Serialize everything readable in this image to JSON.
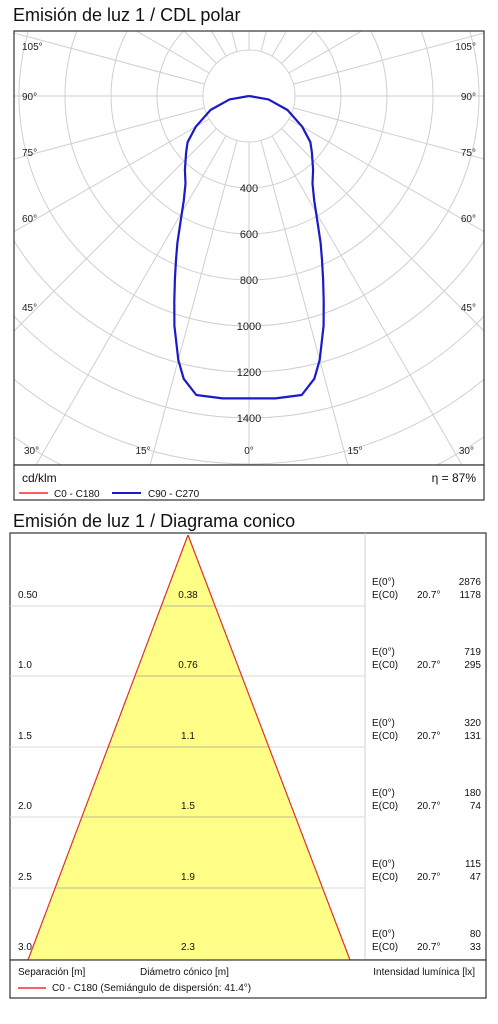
{
  "polar_title": "Emisión de luz 1 / CDL polar",
  "cone_title": "Emisión de luz 1 / Diagrama conico",
  "polar_footer": {
    "unit": "cd/klm",
    "efficiency": "η = 87%",
    "legend": [
      {
        "label": "C0 - C180",
        "color": "#ff2a2a"
      },
      {
        "label": "C90 - C270",
        "color": "#1a1ac8"
      }
    ]
  },
  "cone_footer": {
    "col1": "Separación [m]",
    "col2": "Diámetro cónico [m]",
    "col3": "Intensidad lumínica [lx]",
    "legend": "C0 - C180 (Semiángulo de dispersión: 41.4°)",
    "legend_color": "#ff2a2a"
  },
  "colors": {
    "grid": "#cfcfcf",
    "frame": "#333333",
    "cone_fill": "#ffff88",
    "cone_edge": "#e03030"
  },
  "chart_data": [
    {
      "type": "polar",
      "title": "Emisión de luz 1 / CDL polar",
      "radial_unit": "cd/klm",
      "radial_ticks": [
        400,
        600,
        800,
        1000,
        1200,
        1400
      ],
      "angle_labels_left": [
        "105°",
        "90°",
        "75°",
        "60°",
        "45°",
        "30°",
        "15°"
      ],
      "angle_labels_right": [
        "105°",
        "90°",
        "75°",
        "60°",
        "45°",
        "30°",
        "15°"
      ],
      "angle_label_center": "0°",
      "efficiency": "η = 87%",
      "series": [
        {
          "name": "C90 - C270",
          "color": "#1a1ac8",
          "points": [
            {
              "angle": 0,
              "value": 1315
            },
            {
              "angle": 5,
              "value": 1320
            },
            {
              "angle": 10,
              "value": 1320
            },
            {
              "angle": 13,
              "value": 1262
            },
            {
              "angle": 15,
              "value": 1188
            },
            {
              "angle": 18,
              "value": 1050
            },
            {
              "angle": 20,
              "value": 950
            },
            {
              "angle": 22,
              "value": 860
            },
            {
              "angle": 24,
              "value": 780
            },
            {
              "angle": 26,
              "value": 710
            },
            {
              "angle": 29,
              "value": 610
            },
            {
              "angle": 32,
              "value": 535
            },
            {
              "angle": 36,
              "value": 470
            },
            {
              "angle": 41,
              "value": 425
            },
            {
              "angle": 48,
              "value": 368
            },
            {
              "angle": 53,
              "value": 334
            },
            {
              "angle": 60,
              "value": 267
            },
            {
              "angle": 70,
              "value": 178
            },
            {
              "angle": 80,
              "value": 86
            },
            {
              "angle": 90,
              "value": 0
            }
          ]
        },
        {
          "name": "C0 - C180",
          "color": "#ff2a2a",
          "points": []
        }
      ]
    },
    {
      "type": "cone",
      "title": "Emisión de luz 1 / Diagrama conico",
      "half_angle": "41.4°",
      "rows": [
        {
          "distance": "0.50",
          "diameter": "0.38",
          "e0": "2876",
          "ec0": "1178",
          "angle": "20.7°"
        },
        {
          "distance": "1.0",
          "diameter": "0.76",
          "e0": "719",
          "ec0": "295",
          "angle": "20.7°"
        },
        {
          "distance": "1.5",
          "diameter": "1.1",
          "e0": "320",
          "ec0": "131",
          "angle": "20.7°"
        },
        {
          "distance": "2.0",
          "diameter": "1.5",
          "e0": "180",
          "ec0": "74",
          "angle": "20.7°"
        },
        {
          "distance": "2.5",
          "diameter": "1.9",
          "e0": "115",
          "ec0": "47",
          "angle": "20.7°"
        },
        {
          "distance": "3.0",
          "diameter": "2.3",
          "e0": "80",
          "ec0": "33",
          "angle": "20.7°"
        }
      ],
      "e0_label": "E(0°)",
      "ec0_label": "E(C0)"
    }
  ]
}
